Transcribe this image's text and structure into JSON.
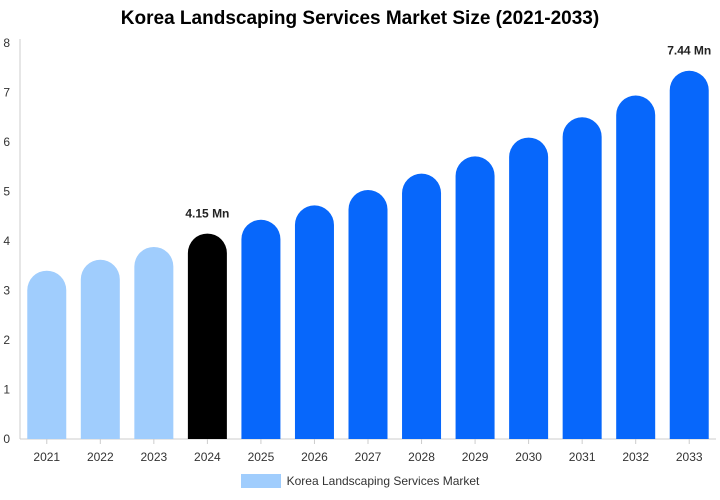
{
  "chart_data": {
    "type": "bar",
    "title": "Korea Landscaping Services Market Size (2021-2033)",
    "categories": [
      "2021",
      "2022",
      "2023",
      "2024",
      "2025",
      "2026",
      "2027",
      "2028",
      "2029",
      "2030",
      "2031",
      "2032",
      "2033"
    ],
    "series": [
      {
        "name": "Korea Landscaping Services Market",
        "values": [
          3.4,
          3.62,
          3.88,
          4.15,
          4.43,
          4.72,
          5.03,
          5.36,
          5.71,
          6.09,
          6.5,
          6.94,
          7.44
        ]
      }
    ],
    "bar_colors": [
      "#a0cdfd",
      "#a0cdfd",
      "#a0cdfd",
      "#000000",
      "#0767fb",
      "#0767fb",
      "#0767fb",
      "#0767fb",
      "#0767fb",
      "#0767fb",
      "#0767fb",
      "#0767fb",
      "#0767fb"
    ],
    "data_labels": [
      {
        "category": "2024",
        "text": "4.15 Mn"
      },
      {
        "category": "2033",
        "text": "7.44 Mn"
      }
    ],
    "y_ticks": [
      "0",
      "1",
      "2",
      "3",
      "4",
      "5",
      "6",
      "7",
      "8"
    ],
    "ylim": [
      0,
      8
    ],
    "grid": false,
    "legend_position": "bottom",
    "legend_color": "#a0cdfd"
  }
}
